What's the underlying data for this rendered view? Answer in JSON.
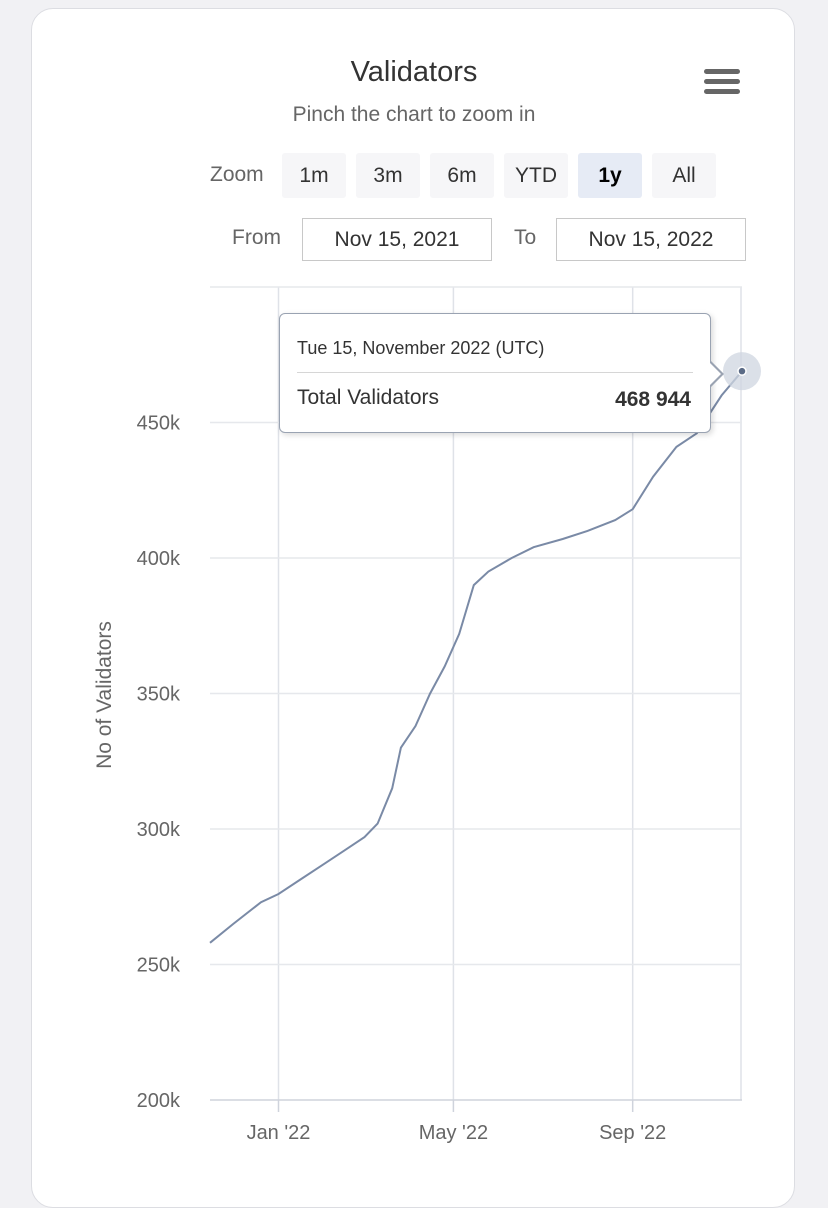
{
  "title": "Validators",
  "subtitle": "Pinch the chart to zoom in",
  "menu_icon": "hamburger-menu-icon",
  "zoom": {
    "label": "Zoom",
    "buttons": [
      "1m",
      "3m",
      "6m",
      "YTD",
      "1y",
      "All"
    ],
    "selected": "1y"
  },
  "range": {
    "from_label": "From",
    "from_value": "Nov 15, 2021",
    "to_label": "To",
    "to_value": "Nov 15, 2022"
  },
  "tooltip": {
    "date": "Tue 15, November 2022 (UTC)",
    "series_label": "Total Validators",
    "value": "468 944"
  },
  "chart_data": {
    "type": "line",
    "title": "Validators",
    "subtitle": "Pinch the chart to zoom in",
    "ylabel": "No of Validators",
    "xlabel": "",
    "ylim": [
      200000,
      500000
    ],
    "xlim": [
      "2021-11-15",
      "2022-11-15"
    ],
    "x_ticks": [
      "Jan '22",
      "May '22",
      "Sep '22"
    ],
    "y_ticks": [
      "200k",
      "250k",
      "300k",
      "350k",
      "400k",
      "450k"
    ],
    "grid": true,
    "line_color": "#7a8aa6",
    "series": [
      {
        "name": "Total Validators",
        "points": [
          [
            "2021-11-15",
            258000
          ],
          [
            "2021-12-01",
            265000
          ],
          [
            "2021-12-20",
            273000
          ],
          [
            "2022-01-01",
            276000
          ],
          [
            "2022-01-15",
            281000
          ],
          [
            "2022-02-01",
            287000
          ],
          [
            "2022-02-15",
            292000
          ],
          [
            "2022-03-01",
            297000
          ],
          [
            "2022-03-10",
            302000
          ],
          [
            "2022-03-20",
            315000
          ],
          [
            "2022-03-26",
            330000
          ],
          [
            "2022-04-05",
            338000
          ],
          [
            "2022-04-15",
            350000
          ],
          [
            "2022-04-25",
            360000
          ],
          [
            "2022-05-05",
            372000
          ],
          [
            "2022-05-15",
            390000
          ],
          [
            "2022-05-25",
            395000
          ],
          [
            "2022-06-10",
            400000
          ],
          [
            "2022-06-25",
            404000
          ],
          [
            "2022-07-15",
            407000
          ],
          [
            "2022-08-01",
            410000
          ],
          [
            "2022-08-20",
            414000
          ],
          [
            "2022-09-01",
            418000
          ],
          [
            "2022-09-15",
            430000
          ],
          [
            "2022-10-01",
            441000
          ],
          [
            "2022-10-15",
            446000
          ],
          [
            "2022-11-01",
            460000
          ],
          [
            "2022-11-15",
            468944
          ]
        ]
      }
    ]
  }
}
